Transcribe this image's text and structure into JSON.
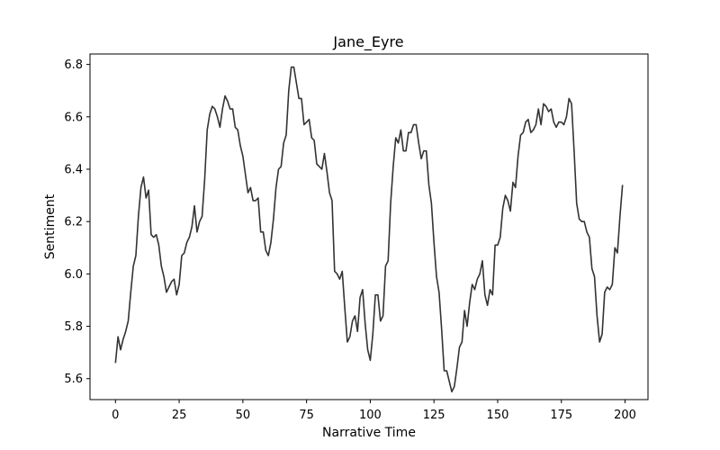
{
  "chart_data": {
    "type": "line",
    "title": "Jane_Eyre",
    "xlabel": "Narrative Time",
    "ylabel": "Sentiment",
    "xlim": [
      -10,
      209
    ],
    "ylim": [
      5.52,
      6.84
    ],
    "xticks": [
      0,
      25,
      50,
      75,
      100,
      125,
      150,
      175,
      200
    ],
    "yticks": [
      5.6,
      5.8,
      6.0,
      6.2,
      6.4,
      6.6,
      6.8
    ],
    "ytick_labels": [
      "5.6",
      "5.8",
      "6.0",
      "6.2",
      "6.4",
      "6.6",
      "6.8"
    ],
    "grid": false,
    "line_color": "#333333",
    "series": [
      {
        "x": [
          0,
          1,
          2,
          3,
          4,
          5,
          6,
          7,
          8,
          9,
          10,
          11,
          12,
          13,
          14,
          15,
          16,
          17,
          18,
          19,
          20,
          21,
          22,
          23,
          24,
          25,
          26,
          27,
          28,
          29,
          30,
          31,
          32,
          33,
          34,
          35,
          36,
          37,
          38,
          39,
          40,
          41,
          42,
          43,
          44,
          45,
          46,
          47,
          48,
          49,
          50,
          51,
          52,
          53,
          54,
          55,
          56,
          57,
          58,
          59,
          60,
          61,
          62,
          63,
          64,
          65,
          66,
          67,
          68,
          69,
          70,
          71,
          72,
          73,
          74,
          75,
          76,
          77,
          78,
          79,
          80,
          81,
          82,
          83,
          84,
          85,
          86,
          87,
          88,
          89,
          90,
          91,
          92,
          93,
          94,
          95,
          96,
          97,
          98,
          99,
          100,
          101,
          102,
          103,
          104,
          105,
          106,
          107,
          108,
          109,
          110,
          111,
          112,
          113,
          114,
          115,
          116,
          117,
          118,
          119,
          120,
          121,
          122,
          123,
          124,
          125,
          126,
          127,
          128,
          129,
          130,
          131,
          132,
          133,
          134,
          135,
          136,
          137,
          138,
          139,
          140,
          141,
          142,
          143,
          144,
          145,
          146,
          147,
          148,
          149,
          150,
          151,
          152,
          153,
          154,
          155,
          156,
          157,
          158,
          159,
          160,
          161,
          162,
          163,
          164,
          165,
          166,
          167,
          168,
          169,
          170,
          171,
          172,
          173,
          174,
          175,
          176,
          177,
          178,
          179,
          180,
          181,
          182,
          183,
          184,
          185,
          186,
          187,
          188,
          189,
          190,
          191,
          192,
          193,
          194,
          195,
          196,
          197,
          198,
          199
        ],
        "values": [
          5.66,
          5.76,
          5.71,
          5.75,
          5.78,
          5.82,
          5.93,
          6.03,
          6.07,
          6.22,
          6.33,
          6.37,
          6.29,
          6.32,
          6.15,
          6.14,
          6.15,
          6.11,
          6.03,
          5.99,
          5.93,
          5.95,
          5.97,
          5.98,
          5.92,
          5.96,
          6.07,
          6.08,
          6.12,
          6.14,
          6.18,
          6.26,
          6.16,
          6.2,
          6.22,
          6.36,
          6.55,
          6.61,
          6.64,
          6.63,
          6.6,
          6.56,
          6.63,
          6.68,
          6.66,
          6.63,
          6.63,
          6.56,
          6.55,
          6.49,
          6.45,
          6.38,
          6.31,
          6.33,
          6.28,
          6.28,
          6.29,
          6.16,
          6.16,
          6.09,
          6.07,
          6.12,
          6.21,
          6.33,
          6.4,
          6.41,
          6.5,
          6.53,
          6.7,
          6.79,
          6.79,
          6.73,
          6.67,
          6.67,
          6.57,
          6.58,
          6.59,
          6.52,
          6.51,
          6.42,
          6.41,
          6.4,
          6.46,
          6.39,
          6.31,
          6.28,
          6.01,
          6.0,
          5.98,
          6.01,
          5.87,
          5.74,
          5.76,
          5.82,
          5.84,
          5.78,
          5.91,
          5.94,
          5.81,
          5.71,
          5.67,
          5.77,
          5.92,
          5.92,
          5.82,
          5.84,
          6.03,
          6.05,
          6.27,
          6.41,
          6.52,
          6.5,
          6.55,
          6.47,
          6.47,
          6.54,
          6.54,
          6.57,
          6.57,
          6.5,
          6.44,
          6.47,
          6.47,
          6.34,
          6.27,
          6.12,
          5.99,
          5.93,
          5.79,
          5.63,
          5.63,
          5.59,
          5.55,
          5.57,
          5.64,
          5.72,
          5.74,
          5.86,
          5.8,
          5.89,
          5.96,
          5.94,
          5.98,
          6.0,
          6.05,
          5.92,
          5.88,
          5.94,
          5.92,
          6.11,
          6.11,
          6.14,
          6.25,
          6.3,
          6.28,
          6.24,
          6.35,
          6.33,
          6.45,
          6.53,
          6.54,
          6.58,
          6.59,
          6.54,
          6.55,
          6.57,
          6.63,
          6.57,
          6.65,
          6.64,
          6.62,
          6.63,
          6.58,
          6.56,
          6.58,
          6.58,
          6.57,
          6.6,
          6.67,
          6.65,
          6.47,
          6.27,
          6.21,
          6.2,
          6.2,
          6.16,
          6.14,
          6.02,
          5.99,
          5.84,
          5.74,
          5.77,
          5.93,
          5.95,
          5.94,
          5.96,
          6.1,
          6.08,
          6.22,
          6.34
        ]
      }
    ]
  }
}
